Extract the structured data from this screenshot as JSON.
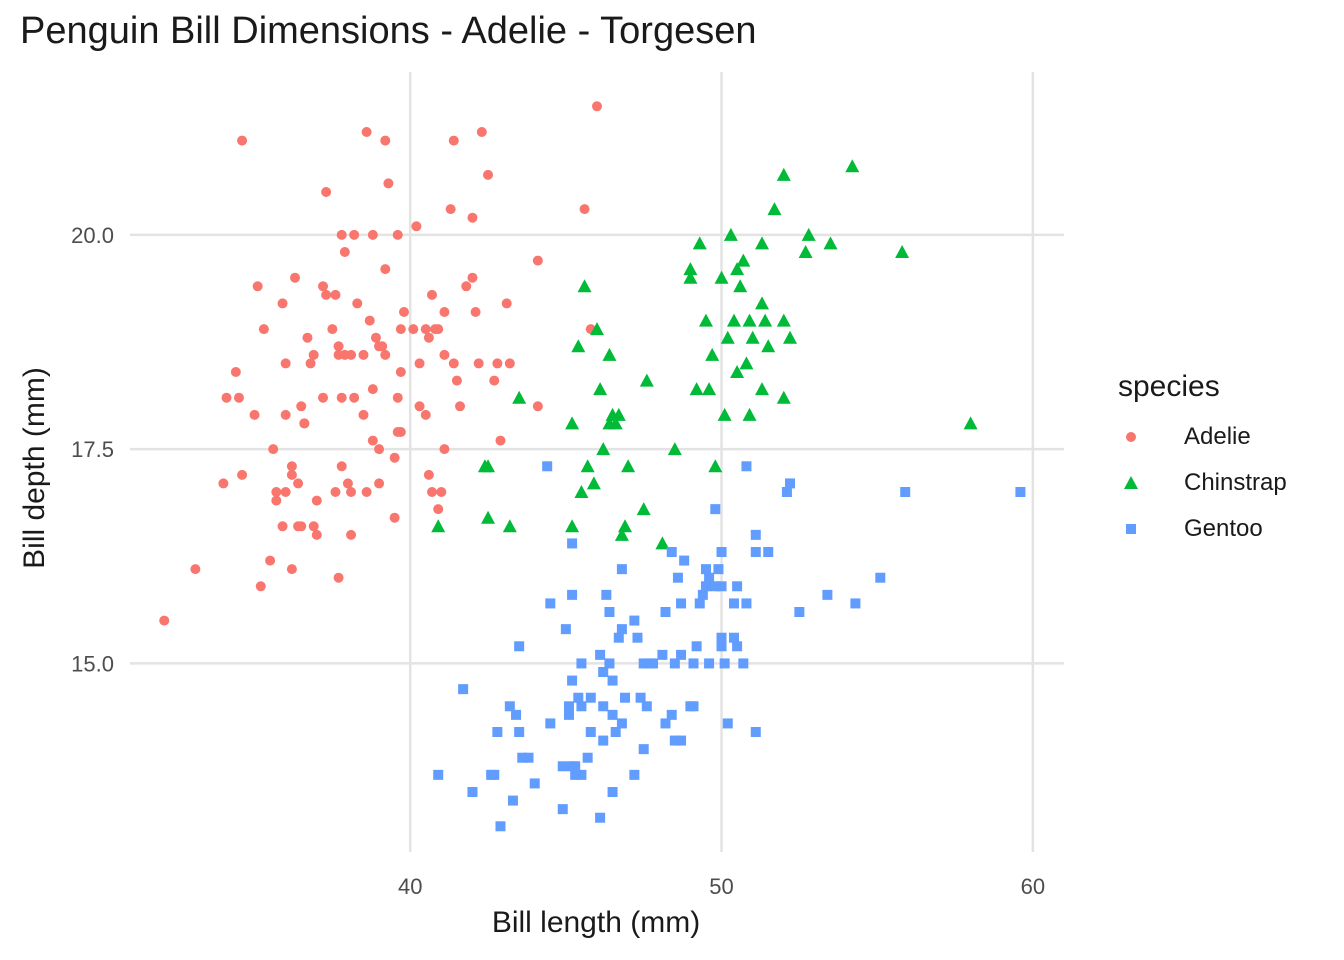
{
  "chart_data": {
    "type": "scatter",
    "title": "Penguin Bill Dimensions - Adelie - Torgesen",
    "xlabel": "Bill length (mm)",
    "ylabel": "Bill depth (mm)",
    "xlim": [
      31.0,
      61.0
    ],
    "ylim": [
      12.8,
      21.9
    ],
    "x_ticks": [
      40,
      50,
      60
    ],
    "x_tick_labels": [
      "40",
      "50",
      "60"
    ],
    "y_ticks": [
      15.0,
      17.5,
      20.0
    ],
    "y_tick_labels": [
      "15.0",
      "17.5",
      "20.0"
    ],
    "grid": true,
    "legend": {
      "title": "species",
      "placement": "right"
    },
    "series": [
      {
        "name": "Adelie",
        "color": "#F8766D",
        "marker": "circle",
        "points": [
          [
            32.1,
            15.5
          ],
          [
            33.1,
            16.1
          ],
          [
            34.0,
            17.1
          ],
          [
            34.1,
            18.1
          ],
          [
            34.4,
            18.4
          ],
          [
            34.6,
            21.1
          ],
          [
            34.6,
            17.2
          ],
          [
            35.0,
            17.9
          ],
          [
            35.1,
            19.4
          ],
          [
            35.2,
            15.9
          ],
          [
            35.3,
            18.9
          ],
          [
            35.5,
            16.2
          ],
          [
            35.6,
            17.5
          ],
          [
            35.7,
            17.0
          ],
          [
            35.9,
            19.2
          ],
          [
            36.0,
            17.9
          ],
          [
            36.0,
            18.5
          ],
          [
            36.2,
            16.1
          ],
          [
            36.2,
            17.3
          ],
          [
            36.3,
            19.5
          ],
          [
            36.4,
            17.1
          ],
          [
            36.5,
            18.0
          ],
          [
            36.6,
            17.8
          ],
          [
            36.7,
            18.8
          ],
          [
            36.8,
            18.5
          ],
          [
            36.9,
            18.6
          ],
          [
            37.0,
            16.9
          ],
          [
            37.2,
            18.1
          ],
          [
            37.3,
            19.3
          ],
          [
            37.5,
            18.9
          ],
          [
            37.6,
            17.0
          ],
          [
            37.7,
            18.7
          ],
          [
            37.8,
            18.1
          ],
          [
            37.8,
            20.0
          ],
          [
            37.9,
            18.6
          ],
          [
            38.1,
            17.0
          ],
          [
            38.1,
            18.6
          ],
          [
            38.2,
            18.1
          ],
          [
            38.3,
            19.2
          ],
          [
            38.5,
            17.9
          ],
          [
            38.6,
            21.2
          ],
          [
            38.7,
            19.0
          ],
          [
            38.8,
            17.6
          ],
          [
            38.9,
            18.8
          ],
          [
            39.0,
            17.1
          ],
          [
            39.1,
            18.7
          ],
          [
            39.2,
            19.6
          ],
          [
            39.3,
            20.6
          ],
          [
            39.5,
            17.4
          ],
          [
            39.6,
            17.7
          ],
          [
            39.7,
            18.9
          ],
          [
            39.8,
            19.1
          ],
          [
            40.1,
            18.9
          ],
          [
            40.2,
            20.1
          ],
          [
            40.3,
            18.0
          ],
          [
            40.5,
            18.9
          ],
          [
            40.6,
            17.2
          ],
          [
            40.7,
            17.0
          ],
          [
            40.8,
            18.9
          ],
          [
            40.9,
            16.8
          ],
          [
            41.0,
            17.0
          ],
          [
            41.1,
            19.1
          ],
          [
            41.3,
            20.3
          ],
          [
            41.4,
            18.5
          ],
          [
            41.5,
            18.3
          ],
          [
            41.6,
            18.0
          ],
          [
            41.8,
            19.4
          ],
          [
            42.0,
            20.2
          ],
          [
            42.1,
            19.1
          ],
          [
            42.2,
            18.5
          ],
          [
            42.3,
            21.2
          ],
          [
            42.5,
            20.7
          ],
          [
            42.7,
            18.3
          ],
          [
            42.8,
            18.5
          ],
          [
            42.9,
            17.6
          ],
          [
            43.1,
            19.2
          ],
          [
            43.2,
            18.5
          ],
          [
            44.1,
            18.0
          ],
          [
            44.1,
            19.7
          ],
          [
            45.6,
            20.3
          ],
          [
            45.8,
            18.9
          ],
          [
            46.0,
            21.5
          ],
          [
            37.7,
            16.0
          ],
          [
            39.7,
            17.7
          ],
          [
            36.4,
            16.6
          ],
          [
            35.7,
            16.9
          ],
          [
            38.0,
            17.1
          ],
          [
            40.6,
            18.8
          ],
          [
            37.2,
            19.4
          ],
          [
            38.8,
            18.2
          ],
          [
            40.9,
            18.9
          ],
          [
            36.9,
            16.6
          ],
          [
            38.8,
            20.0
          ],
          [
            39.6,
            18.1
          ],
          [
            41.1,
            17.5
          ],
          [
            36.0,
            17.0
          ],
          [
            38.6,
            17.0
          ],
          [
            39.0,
            18.7
          ],
          [
            37.8,
            17.3
          ],
          [
            40.3,
            18.5
          ],
          [
            39.6,
            20.0
          ],
          [
            35.9,
            16.6
          ],
          [
            37.6,
            19.3
          ],
          [
            38.1,
            16.5
          ],
          [
            39.2,
            18.6
          ],
          [
            36.2,
            17.2
          ],
          [
            37.3,
            20.5
          ],
          [
            41.4,
            21.1
          ],
          [
            39.5,
            16.7
          ],
          [
            39.2,
            21.1
          ],
          [
            38.5,
            18.6
          ],
          [
            40.5,
            17.9
          ],
          [
            36.6,
            17.8
          ],
          [
            37.9,
            19.8
          ],
          [
            39.7,
            18.4
          ],
          [
            41.1,
            18.6
          ],
          [
            42.0,
            19.5
          ],
          [
            37.0,
            16.5
          ],
          [
            38.2,
            20.0
          ],
          [
            34.5,
            18.1
          ],
          [
            39.0,
            17.5
          ],
          [
            36.5,
            16.6
          ],
          [
            40.7,
            19.3
          ],
          [
            37.7,
            18.6
          ]
        ]
      },
      {
        "name": "Chinstrap",
        "color": "#00BA38",
        "marker": "triangle",
        "points": [
          [
            40.9,
            16.6
          ],
          [
            42.4,
            17.3
          ],
          [
            42.5,
            16.7
          ],
          [
            42.5,
            17.3
          ],
          [
            43.2,
            16.6
          ],
          [
            43.5,
            18.1
          ],
          [
            45.2,
            17.8
          ],
          [
            45.2,
            16.6
          ],
          [
            45.4,
            18.7
          ],
          [
            45.5,
            17.0
          ],
          [
            45.6,
            19.4
          ],
          [
            45.7,
            17.3
          ],
          [
            45.9,
            17.1
          ],
          [
            46.0,
            18.9
          ],
          [
            46.1,
            18.2
          ],
          [
            46.2,
            17.5
          ],
          [
            46.4,
            17.8
          ],
          [
            46.4,
            18.6
          ],
          [
            46.5,
            17.9
          ],
          [
            46.6,
            17.8
          ],
          [
            46.7,
            17.9
          ],
          [
            46.8,
            16.5
          ],
          [
            46.9,
            16.6
          ],
          [
            47.0,
            17.3
          ],
          [
            47.5,
            16.8
          ],
          [
            47.6,
            18.3
          ],
          [
            48.1,
            16.4
          ],
          [
            48.5,
            17.5
          ],
          [
            49.0,
            19.5
          ],
          [
            49.0,
            19.6
          ],
          [
            49.2,
            18.2
          ],
          [
            49.3,
            19.9
          ],
          [
            49.5,
            19.0
          ],
          [
            49.6,
            18.2
          ],
          [
            49.7,
            18.6
          ],
          [
            49.8,
            17.3
          ],
          [
            50.0,
            19.5
          ],
          [
            50.1,
            17.9
          ],
          [
            50.2,
            18.8
          ],
          [
            50.3,
            20.0
          ],
          [
            50.4,
            19.0
          ],
          [
            50.5,
            18.4
          ],
          [
            50.5,
            19.6
          ],
          [
            50.6,
            19.4
          ],
          [
            50.7,
            19.7
          ],
          [
            50.8,
            18.5
          ],
          [
            50.9,
            17.9
          ],
          [
            50.9,
            19.0
          ],
          [
            51.0,
            18.8
          ],
          [
            51.3,
            19.2
          ],
          [
            51.3,
            19.9
          ],
          [
            51.3,
            18.2
          ],
          [
            51.4,
            19.0
          ],
          [
            51.5,
            18.7
          ],
          [
            51.7,
            20.3
          ],
          [
            52.0,
            20.7
          ],
          [
            52.0,
            18.1
          ],
          [
            52.0,
            19.0
          ],
          [
            52.2,
            18.8
          ],
          [
            52.7,
            19.8
          ],
          [
            52.8,
            20.0
          ],
          [
            53.5,
            19.9
          ],
          [
            54.2,
            20.8
          ],
          [
            55.8,
            19.8
          ],
          [
            58.0,
            17.8
          ]
        ]
      },
      {
        "name": "Gentoo",
        "color": "#619CFF",
        "marker": "square",
        "points": [
          [
            40.9,
            13.7
          ],
          [
            41.7,
            14.7
          ],
          [
            42.0,
            13.5
          ],
          [
            42.6,
            13.7
          ],
          [
            42.7,
            13.7
          ],
          [
            42.8,
            14.2
          ],
          [
            42.9,
            13.1
          ],
          [
            43.2,
            14.5
          ],
          [
            43.3,
            13.4
          ],
          [
            43.4,
            14.4
          ],
          [
            43.5,
            14.2
          ],
          [
            43.5,
            15.2
          ],
          [
            43.6,
            13.9
          ],
          [
            43.8,
            13.9
          ],
          [
            44.0,
            13.6
          ],
          [
            44.4,
            17.3
          ],
          [
            44.5,
            14.3
          ],
          [
            44.5,
            15.7
          ],
          [
            44.9,
            13.3
          ],
          [
            44.9,
            13.8
          ],
          [
            45.0,
            15.4
          ],
          [
            45.1,
            14.5
          ],
          [
            45.1,
            14.4
          ],
          [
            45.2,
            13.8
          ],
          [
            45.2,
            14.8
          ],
          [
            45.2,
            15.8
          ],
          [
            45.2,
            16.4
          ],
          [
            45.3,
            13.8
          ],
          [
            45.3,
            13.7
          ],
          [
            45.4,
            14.6
          ],
          [
            45.5,
            13.7
          ],
          [
            45.5,
            14.5
          ],
          [
            45.5,
            15.0
          ],
          [
            45.7,
            13.9
          ],
          [
            45.8,
            14.2
          ],
          [
            45.8,
            14.6
          ],
          [
            46.1,
            13.2
          ],
          [
            46.1,
            15.1
          ],
          [
            46.2,
            14.1
          ],
          [
            46.2,
            14.5
          ],
          [
            46.2,
            14.9
          ],
          [
            46.3,
            15.8
          ],
          [
            46.4,
            15.0
          ],
          [
            46.4,
            15.6
          ],
          [
            46.5,
            13.5
          ],
          [
            46.5,
            14.4
          ],
          [
            46.5,
            14.8
          ],
          [
            46.6,
            14.2
          ],
          [
            46.7,
            15.3
          ],
          [
            46.8,
            14.3
          ],
          [
            46.8,
            15.4
          ],
          [
            46.8,
            16.1
          ],
          [
            46.9,
            14.6
          ],
          [
            47.2,
            13.7
          ],
          [
            47.2,
            15.5
          ],
          [
            47.3,
            15.3
          ],
          [
            47.4,
            14.6
          ],
          [
            47.5,
            14.0
          ],
          [
            47.5,
            15.0
          ],
          [
            47.6,
            14.5
          ],
          [
            47.7,
            15.0
          ],
          [
            47.8,
            15.0
          ],
          [
            48.1,
            15.1
          ],
          [
            48.2,
            14.3
          ],
          [
            48.2,
            15.6
          ],
          [
            48.4,
            14.4
          ],
          [
            48.4,
            16.3
          ],
          [
            48.5,
            14.1
          ],
          [
            48.5,
            15.0
          ],
          [
            48.6,
            16.0
          ],
          [
            48.7,
            14.1
          ],
          [
            48.7,
            15.1
          ],
          [
            48.7,
            15.7
          ],
          [
            48.8,
            16.2
          ],
          [
            49.0,
            14.5
          ],
          [
            49.1,
            14.5
          ],
          [
            49.1,
            15.0
          ],
          [
            49.2,
            15.2
          ],
          [
            49.3,
            15.7
          ],
          [
            49.4,
            15.8
          ],
          [
            49.5,
            15.9
          ],
          [
            49.5,
            16.1
          ],
          [
            49.6,
            15.0
          ],
          [
            49.6,
            16.0
          ],
          [
            49.8,
            15.9
          ],
          [
            49.8,
            16.8
          ],
          [
            49.9,
            16.1
          ],
          [
            50.0,
            15.2
          ],
          [
            50.0,
            15.3
          ],
          [
            50.0,
            15.9
          ],
          [
            50.0,
            16.3
          ],
          [
            50.1,
            15.0
          ],
          [
            50.2,
            14.3
          ],
          [
            50.4,
            15.3
          ],
          [
            50.4,
            15.7
          ],
          [
            50.5,
            15.2
          ],
          [
            50.5,
            15.9
          ],
          [
            50.7,
            15.0
          ],
          [
            50.8,
            15.7
          ],
          [
            50.8,
            17.3
          ],
          [
            51.1,
            14.2
          ],
          [
            51.1,
            16.3
          ],
          [
            51.1,
            16.5
          ],
          [
            51.5,
            16.3
          ],
          [
            52.1,
            17.0
          ],
          [
            52.2,
            17.1
          ],
          [
            52.5,
            15.6
          ],
          [
            53.4,
            15.8
          ],
          [
            54.3,
            15.7
          ],
          [
            55.1,
            16.0
          ],
          [
            55.9,
            17.0
          ],
          [
            59.6,
            17.0
          ]
        ]
      }
    ]
  }
}
